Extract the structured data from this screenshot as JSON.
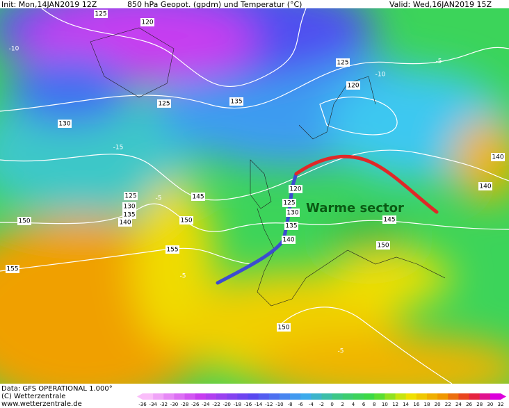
{
  "header": {
    "init": "Init: Mon,14JAN2019 12Z",
    "title": "850 hPa Geopot. (gpdm) und Temperatur (°C)",
    "valid": "Valid: Wed,16JAN2019 15Z"
  },
  "map": {
    "annotation": "Warme sector",
    "geopotential_labels": [
      "125",
      "120",
      "125",
      "120",
      "125",
      "135",
      "130",
      "125",
      "130",
      "135",
      "140",
      "150",
      "150",
      "145",
      "155",
      "155",
      "140",
      "140",
      "120",
      "125",
      "130",
      "135",
      "140",
      "145",
      "150",
      "150"
    ],
    "temperature_labels": [
      "-10",
      "-5",
      "-15",
      "-10",
      "-5",
      "-5",
      "-5"
    ]
  },
  "footer": {
    "data": "Data: GFS OPERATIONAL 1.000°",
    "copyright": "(C) Wetterzentrale",
    "url": "www.wetterzentrale.de"
  },
  "colorbar": {
    "ticks": [
      -36,
      -34,
      -32,
      -30,
      -28,
      -26,
      -24,
      -22,
      -20,
      -18,
      -16,
      -14,
      -12,
      -10,
      -8,
      -6,
      -4,
      -2,
      0,
      2,
      4,
      6,
      8,
      10,
      12,
      14,
      16,
      18,
      20,
      22,
      24,
      26,
      28,
      30,
      32
    ]
  }
}
